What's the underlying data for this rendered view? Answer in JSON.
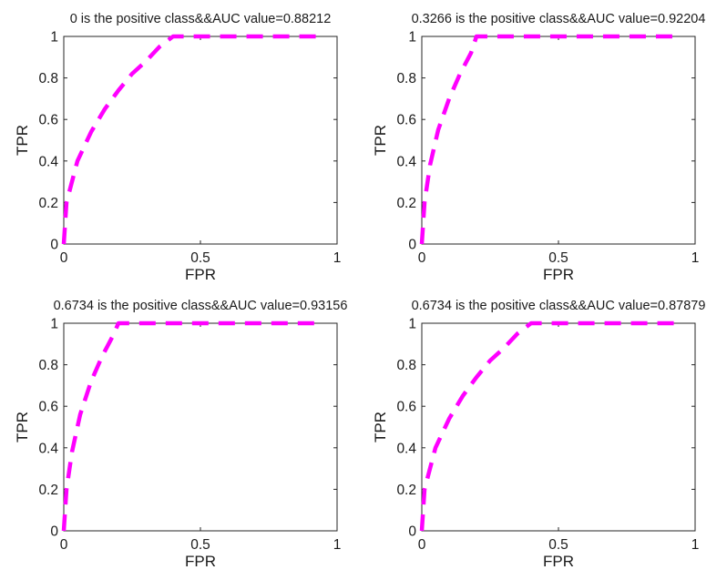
{
  "chart_data": [
    {
      "type": "line",
      "title": "0 is the positive class&&AUC value=0.88212",
      "xlabel": "FPR",
      "ylabel": "TPR",
      "xlim": [
        0,
        1
      ],
      "ylim": [
        0,
        1
      ],
      "xticks": [
        "0",
        "0.5",
        "1"
      ],
      "yticks": [
        "0",
        "0.2",
        "0.4",
        "0.6",
        "0.8",
        "1"
      ],
      "grid": false,
      "line_color": "#ff00ff",
      "line_style": "dashed",
      "series": [
        {
          "x": [
            0,
            0.01,
            0.05,
            0.1,
            0.15,
            0.2,
            0.25,
            0.3,
            0.35,
            0.4,
            0.45,
            0.6,
            0.8,
            0.93
          ],
          "y": [
            0,
            0.2,
            0.4,
            0.54,
            0.65,
            0.74,
            0.82,
            0.88,
            0.95,
            1,
            1,
            1,
            1,
            1
          ]
        }
      ]
    },
    {
      "type": "line",
      "title": "0.3266 is the positive class&&AUC value=0.92204",
      "xlabel": "FPR",
      "ylabel": "TPR",
      "xlim": [
        0,
        1
      ],
      "ylim": [
        0,
        1
      ],
      "xticks": [
        "0",
        "0.5",
        "1"
      ],
      "yticks": [
        "0",
        "0.2",
        "0.4",
        "0.6",
        "0.8",
        "1"
      ],
      "grid": false,
      "line_color": "#ff00ff",
      "line_style": "dashed",
      "series": [
        {
          "x": [
            0,
            0.01,
            0.03,
            0.06,
            0.1,
            0.14,
            0.18,
            0.2,
            0.3,
            0.5,
            0.7,
            0.93
          ],
          "y": [
            0,
            0.2,
            0.38,
            0.55,
            0.7,
            0.82,
            0.92,
            1,
            1,
            1,
            1,
            1
          ]
        }
      ]
    },
    {
      "type": "line",
      "title": "0.6734 is the positive class&&AUC value=0.93156",
      "xlabel": "FPR",
      "ylabel": "TPR",
      "xlim": [
        0,
        1
      ],
      "ylim": [
        0,
        1
      ],
      "xticks": [
        "0",
        "0.5",
        "1"
      ],
      "yticks": [
        "0",
        "0.2",
        "0.4",
        "0.6",
        "0.8",
        "1"
      ],
      "grid": false,
      "line_color": "#ff00ff",
      "line_style": "dashed",
      "series": [
        {
          "x": [
            0,
            0.01,
            0.03,
            0.06,
            0.1,
            0.14,
            0.18,
            0.2,
            0.3,
            0.5,
            0.7,
            0.93
          ],
          "y": [
            0,
            0.2,
            0.38,
            0.56,
            0.72,
            0.84,
            0.94,
            1,
            1,
            1,
            1,
            1
          ]
        }
      ]
    },
    {
      "type": "line",
      "title": "0.6734 is the positive class&&AUC value=0.87879",
      "xlabel": "FPR",
      "ylabel": "TPR",
      "xlim": [
        0,
        1
      ],
      "ylim": [
        0,
        1
      ],
      "xticks": [
        "0",
        "0.5",
        "1"
      ],
      "yticks": [
        "0",
        "0.2",
        "0.4",
        "0.6",
        "0.8",
        "1"
      ],
      "grid": false,
      "line_color": "#ff00ff",
      "line_style": "dashed",
      "series": [
        {
          "x": [
            0,
            0.01,
            0.05,
            0.1,
            0.15,
            0.2,
            0.25,
            0.3,
            0.35,
            0.4,
            0.45,
            0.6,
            0.8,
            0.93
          ],
          "y": [
            0,
            0.2,
            0.4,
            0.54,
            0.65,
            0.74,
            0.82,
            0.88,
            0.95,
            1,
            1,
            1,
            1,
            1
          ]
        }
      ]
    }
  ]
}
